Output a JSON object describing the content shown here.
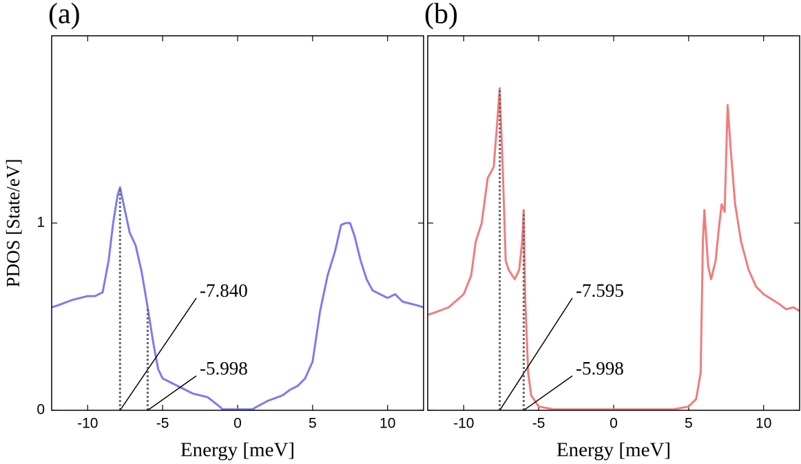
{
  "chart_data": [
    {
      "type": "line",
      "panel_label": "(a)",
      "xlabel": "Energy [meV]",
      "ylabel": "PDOS [State/eV]",
      "xlim": [
        -12.4,
        12.4
      ],
      "ylim": [
        0,
        2
      ],
      "xticks": [
        -10,
        -5,
        0,
        5,
        10
      ],
      "yticks": [
        0,
        1
      ],
      "series": [
        {
          "color": "#7b7bee",
          "x": [
            -12.4,
            -12,
            -11,
            -10,
            -9.5,
            -9,
            -8.6,
            -8.3,
            -8.0,
            -7.84,
            -7.6,
            -7.2,
            -6.8,
            -6.4,
            -6.0,
            -5.6,
            -5.3,
            -5,
            -4,
            -3,
            -2,
            -1.2,
            -1,
            0,
            1,
            1.3,
            2,
            3,
            3.5,
            4,
            4.5,
            5,
            5.5,
            6,
            6.5,
            6.9,
            7.2,
            7.5,
            7.8,
            8.2,
            8.6,
            9,
            9.5,
            10,
            10.5,
            11,
            12,
            12.4
          ],
          "values": [
            0.55,
            0.56,
            0.59,
            0.61,
            0.61,
            0.63,
            0.8,
            1.0,
            1.15,
            1.19,
            1.1,
            0.95,
            0.88,
            0.74,
            0.55,
            0.35,
            0.22,
            0.17,
            0.13,
            0.09,
            0.07,
            0.02,
            0.005,
            0.005,
            0.005,
            0.02,
            0.05,
            0.08,
            0.11,
            0.13,
            0.17,
            0.26,
            0.53,
            0.72,
            0.85,
            0.99,
            1.0,
            1.0,
            0.93,
            0.8,
            0.7,
            0.64,
            0.62,
            0.6,
            0.62,
            0.58,
            0.56,
            0.55
          ]
        }
      ],
      "annotations": [
        {
          "x": -7.84,
          "label": "-7.840"
        },
        {
          "x": -5.998,
          "label": "-5.998"
        }
      ]
    },
    {
      "type": "line",
      "panel_label": "(b)",
      "xlabel": "Energy [meV]",
      "xlim": [
        -12.4,
        12.4
      ],
      "ylim": [
        0,
        2
      ],
      "xticks": [
        -10,
        -5,
        0,
        5,
        10
      ],
      "yticks": [
        0,
        1
      ],
      "series": [
        {
          "color": "#f27b7b",
          "x": [
            -12.4,
            -12,
            -11,
            -10,
            -9.5,
            -9.2,
            -8.8,
            -8.4,
            -8.0,
            -7.8,
            -7.6,
            -7.4,
            -7.2,
            -7,
            -6.6,
            -6.3,
            -6.1,
            -6.0,
            -5.9,
            -5.7,
            -5.5,
            -5,
            -4,
            0,
            4,
            5,
            5.5,
            5.8,
            5.95,
            6.05,
            6.3,
            6.5,
            6.8,
            7.0,
            7.2,
            7.4,
            7.6,
            7.8,
            8.1,
            8.5,
            9,
            9.5,
            10,
            11,
            11.5,
            12,
            12.4
          ],
          "values": [
            0.51,
            0.52,
            0.55,
            0.62,
            0.72,
            0.9,
            1.0,
            1.24,
            1.3,
            1.5,
            1.72,
            1.3,
            0.8,
            0.75,
            0.7,
            0.75,
            0.9,
            1.07,
            0.6,
            0.2,
            0.08,
            0.02,
            0.005,
            0.005,
            0.005,
            0.02,
            0.06,
            0.2,
            0.9,
            1.07,
            0.77,
            0.7,
            0.8,
            0.96,
            1.1,
            1.06,
            1.63,
            1.4,
            1.1,
            0.9,
            0.75,
            0.66,
            0.62,
            0.57,
            0.54,
            0.55,
            0.53
          ]
        }
      ],
      "annotations": [
        {
          "x": -7.595,
          "label": "-7.595"
        },
        {
          "x": -5.998,
          "label": "-5.998"
        }
      ]
    }
  ]
}
